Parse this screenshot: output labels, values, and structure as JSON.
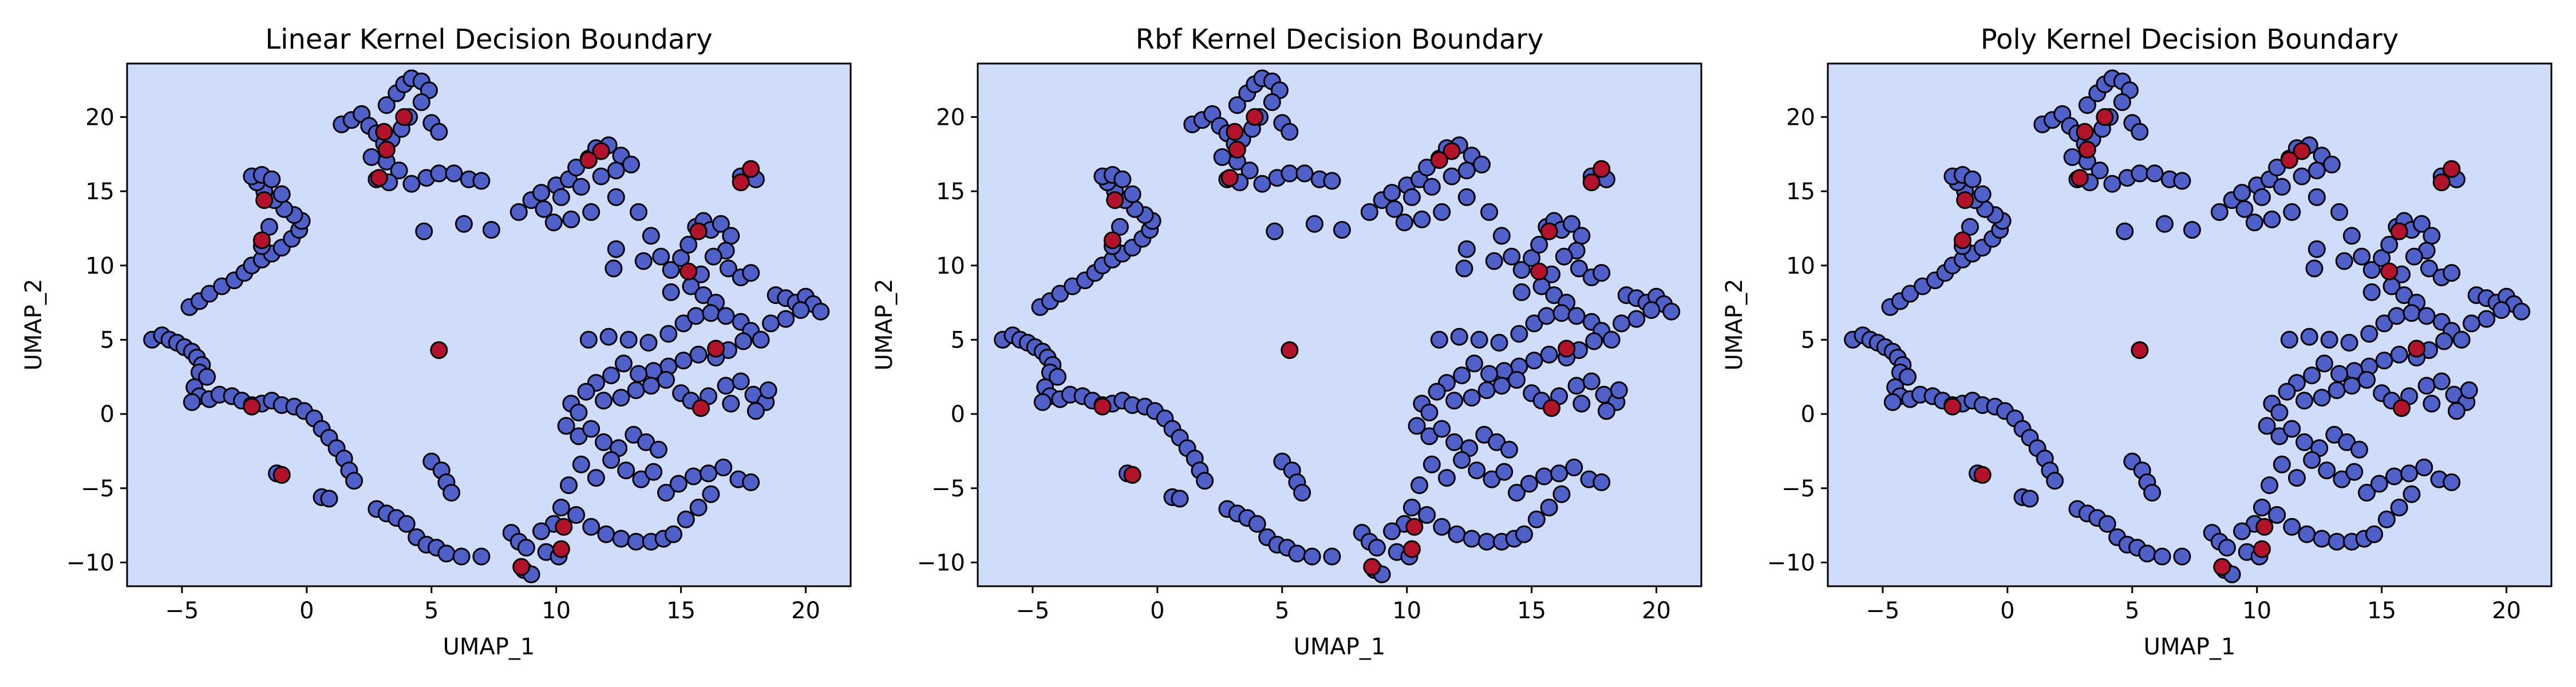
{
  "figure": {
    "background": "#ffffff",
    "region_color": "#cfdcfa",
    "class_colors": {
      "majority": "#4f60c9",
      "minority": "#b2122a"
    },
    "marker_edge": "#000000"
  },
  "chart_data": [
    {
      "type": "scatter",
      "title": "Linear Kernel Decision Boundary",
      "xlabel": "UMAP_1",
      "ylabel": "UMAP_2",
      "xlim": [
        -7.2,
        21.8
      ],
      "ylim": [
        -11.6,
        23.6
      ],
      "xticks": [
        -5,
        0,
        5,
        10,
        15,
        20
      ],
      "yticks": [
        -10,
        -5,
        0,
        5,
        10,
        15,
        20
      ],
      "xtick_labels": [
        "−5",
        "0",
        "5",
        "10",
        "15",
        "20"
      ],
      "ytick_labels": [
        "−10",
        "−5",
        "0",
        "5",
        "10",
        "15",
        "20"
      ],
      "grid": false,
      "legend": "none"
    },
    {
      "type": "scatter",
      "title": "Rbf Kernel Decision Boundary",
      "xlabel": "UMAP_1",
      "ylabel": "UMAP_2",
      "xlim": [
        -7.2,
        21.8
      ],
      "ylim": [
        -11.6,
        23.6
      ],
      "xticks": [
        -5,
        0,
        5,
        10,
        15,
        20
      ],
      "yticks": [
        -10,
        -5,
        0,
        5,
        10,
        15,
        20
      ],
      "xtick_labels": [
        "−5",
        "0",
        "5",
        "10",
        "15",
        "20"
      ],
      "ytick_labels": [
        "−10",
        "−5",
        "0",
        "5",
        "10",
        "15",
        "20"
      ],
      "grid": false,
      "legend": "none"
    },
    {
      "type": "scatter",
      "title": "Poly Kernel Decision Boundary",
      "xlabel": "UMAP_1",
      "ylabel": "UMAP_2",
      "xlim": [
        -7.2,
        21.8
      ],
      "ylim": [
        -11.6,
        23.6
      ],
      "xticks": [
        -5,
        0,
        5,
        10,
        15,
        20
      ],
      "yticks": [
        -10,
        -5,
        0,
        5,
        10,
        15,
        20
      ],
      "xtick_labels": [
        "−5",
        "0",
        "5",
        "10",
        "15",
        "20"
      ],
      "ytick_labels": [
        "−10",
        "−5",
        "0",
        "5",
        "10",
        "15",
        "20"
      ],
      "grid": false,
      "legend": "none"
    }
  ],
  "points": {
    "majority": [
      [
        -6.2,
        5.0
      ],
      [
        -5.8,
        5.3
      ],
      [
        -5.5,
        5.0
      ],
      [
        -5.2,
        4.8
      ],
      [
        -4.9,
        4.5
      ],
      [
        -4.6,
        4.2
      ],
      [
        -4.4,
        3.8
      ],
      [
        -4.2,
        3.3
      ],
      [
        -4.3,
        2.8
      ],
      [
        -4.0,
        2.5
      ],
      [
        -4.5,
        1.8
      ],
      [
        -4.3,
        1.2
      ],
      [
        -4.6,
        0.8
      ],
      [
        -3.9,
        1.0
      ],
      [
        -3.5,
        1.3
      ],
      [
        -3.0,
        1.2
      ],
      [
        -2.6,
        0.9
      ],
      [
        -2.2,
        0.6
      ],
      [
        -1.8,
        0.7
      ],
      [
        -1.4,
        0.9
      ],
      [
        -1.0,
        0.6
      ],
      [
        -0.5,
        0.5
      ],
      [
        -0.1,
        0.2
      ],
      [
        0.3,
        -0.3
      ],
      [
        0.6,
        -1.0
      ],
      [
        0.9,
        -1.6
      ],
      [
        1.2,
        -2.3
      ],
      [
        1.5,
        -3.0
      ],
      [
        1.7,
        -3.8
      ],
      [
        1.9,
        -4.5
      ],
      [
        0.6,
        -5.6
      ],
      [
        0.9,
        -5.7
      ],
      [
        -1.2,
        -4.0
      ],
      [
        2.8,
        -6.4
      ],
      [
        3.2,
        -6.7
      ],
      [
        3.6,
        -7.0
      ],
      [
        4.0,
        -7.4
      ],
      [
        4.4,
        -8.3
      ],
      [
        4.8,
        -8.8
      ],
      [
        5.2,
        -9.0
      ],
      [
        5.6,
        -9.4
      ],
      [
        6.2,
        -9.6
      ],
      [
        7.0,
        -9.6
      ],
      [
        8.2,
        -8.0
      ],
      [
        8.5,
        -8.6
      ],
      [
        8.8,
        -9.0
      ],
      [
        8.7,
        -10.5
      ],
      [
        9.0,
        -10.8
      ],
      [
        5.0,
        -3.2
      ],
      [
        5.4,
        -3.8
      ],
      [
        5.6,
        -4.6
      ],
      [
        5.8,
        -5.3
      ],
      [
        -4.7,
        7.2
      ],
      [
        -4.3,
        7.6
      ],
      [
        -3.9,
        8.1
      ],
      [
        -3.4,
        8.6
      ],
      [
        -2.9,
        9.0
      ],
      [
        -2.5,
        9.5
      ],
      [
        -2.2,
        10.0
      ],
      [
        -1.8,
        10.4
      ],
      [
        -1.4,
        10.8
      ],
      [
        -1.0,
        11.2
      ],
      [
        -0.6,
        11.8
      ],
      [
        -0.3,
        12.4
      ],
      [
        -0.2,
        13.0
      ],
      [
        -0.5,
        13.4
      ],
      [
        -0.9,
        13.8
      ],
      [
        -1.3,
        14.4
      ],
      [
        -1.7,
        15.0
      ],
      [
        -2.0,
        15.6
      ],
      [
        -2.2,
        16.0
      ],
      [
        -1.8,
        16.1
      ],
      [
        -1.4,
        15.8
      ],
      [
        -1.0,
        14.8
      ],
      [
        -1.5,
        12.6
      ],
      [
        -1.8,
        11.3
      ],
      [
        1.4,
        19.5
      ],
      [
        1.8,
        19.8
      ],
      [
        2.2,
        20.2
      ],
      [
        2.5,
        19.4
      ],
      [
        2.8,
        18.9
      ],
      [
        3.1,
        18.2
      ],
      [
        3.4,
        18.5
      ],
      [
        3.8,
        19.2
      ],
      [
        4.1,
        20.0
      ],
      [
        3.2,
        20.8
      ],
      [
        3.6,
        21.6
      ],
      [
        3.9,
        22.2
      ],
      [
        4.2,
        22.6
      ],
      [
        4.6,
        22.4
      ],
      [
        4.9,
        21.8
      ],
      [
        4.6,
        21.0
      ],
      [
        5.0,
        19.6
      ],
      [
        5.3,
        19.0
      ],
      [
        2.6,
        17.3
      ],
      [
        3.2,
        17.0
      ],
      [
        3.7,
        16.4
      ],
      [
        2.8,
        15.8
      ],
      [
        3.3,
        15.6
      ],
      [
        4.2,
        15.5
      ],
      [
        4.8,
        15.9
      ],
      [
        5.3,
        16.2
      ],
      [
        5.9,
        16.2
      ],
      [
        6.5,
        15.8
      ],
      [
        7.0,
        15.7
      ],
      [
        4.7,
        12.3
      ],
      [
        6.3,
        12.8
      ],
      [
        7.4,
        12.4
      ],
      [
        8.5,
        13.6
      ],
      [
        9.0,
        14.4
      ],
      [
        9.4,
        14.9
      ],
      [
        10.0,
        15.4
      ],
      [
        10.5,
        15.8
      ],
      [
        10.8,
        16.6
      ],
      [
        11.3,
        17.2
      ],
      [
        11.6,
        17.9
      ],
      [
        12.1,
        18.1
      ],
      [
        12.6,
        17.4
      ],
      [
        13.0,
        16.8
      ],
      [
        12.4,
        16.4
      ],
      [
        11.8,
        16.0
      ],
      [
        11.0,
        15.3
      ],
      [
        10.2,
        14.6
      ],
      [
        9.5,
        13.8
      ],
      [
        9.9,
        12.9
      ],
      [
        10.6,
        13.1
      ],
      [
        11.4,
        13.6
      ],
      [
        12.4,
        14.6
      ],
      [
        13.3,
        13.6
      ],
      [
        12.4,
        11.1
      ],
      [
        12.3,
        9.8
      ],
      [
        13.8,
        12.0
      ],
      [
        13.5,
        10.3
      ],
      [
        14.2,
        10.6
      ],
      [
        14.6,
        9.7
      ],
      [
        15.0,
        10.5
      ],
      [
        15.3,
        11.4
      ],
      [
        15.6,
        12.6
      ],
      [
        15.9,
        13.0
      ],
      [
        16.2,
        12.4
      ],
      [
        16.6,
        12.8
      ],
      [
        17.0,
        12.0
      ],
      [
        16.8,
        11.0
      ],
      [
        16.3,
        10.6
      ],
      [
        15.8,
        9.4
      ],
      [
        16.9,
        9.8
      ],
      [
        17.4,
        9.2
      ],
      [
        17.8,
        9.5
      ],
      [
        15.4,
        8.6
      ],
      [
        14.6,
        8.2
      ],
      [
        15.9,
        8.0
      ],
      [
        16.4,
        7.5
      ],
      [
        17.4,
        16.0
      ],
      [
        17.8,
        16.4
      ],
      [
        18.0,
        15.8
      ],
      [
        18.8,
        8.0
      ],
      [
        19.2,
        7.8
      ],
      [
        19.6,
        7.5
      ],
      [
        20.0,
        7.9
      ],
      [
        20.3,
        7.4
      ],
      [
        20.6,
        6.9
      ],
      [
        19.8,
        7.0
      ],
      [
        19.2,
        6.4
      ],
      [
        18.6,
        6.1
      ],
      [
        11.3,
        5.0
      ],
      [
        12.1,
        5.2
      ],
      [
        12.9,
        5.0
      ],
      [
        13.7,
        4.8
      ],
      [
        14.5,
        5.4
      ],
      [
        15.1,
        6.1
      ],
      [
        15.6,
        6.6
      ],
      [
        16.2,
        6.8
      ],
      [
        16.8,
        6.6
      ],
      [
        17.4,
        6.2
      ],
      [
        17.8,
        5.6
      ],
      [
        18.2,
        5.0
      ],
      [
        17.5,
        4.9
      ],
      [
        16.9,
        4.3
      ],
      [
        16.4,
        3.8
      ],
      [
        15.7,
        4.0
      ],
      [
        15.1,
        3.6
      ],
      [
        14.5,
        3.2
      ],
      [
        13.9,
        2.9
      ],
      [
        13.3,
        2.7
      ],
      [
        12.7,
        3.4
      ],
      [
        12.2,
        2.6
      ],
      [
        11.6,
        2.1
      ],
      [
        11.2,
        1.5
      ],
      [
        11.9,
        0.9
      ],
      [
        12.6,
        1.1
      ],
      [
        13.2,
        1.6
      ],
      [
        13.8,
        1.9
      ],
      [
        14.4,
        2.3
      ],
      [
        15.0,
        1.4
      ],
      [
        15.4,
        0.9
      ],
      [
        16.1,
        1.2
      ],
      [
        16.8,
        1.9
      ],
      [
        17.4,
        2.2
      ],
      [
        17.0,
        0.7
      ],
      [
        17.9,
        1.3
      ],
      [
        18.4,
        0.8
      ],
      [
        18.0,
        0.2
      ],
      [
        18.5,
        1.6
      ],
      [
        10.6,
        0.7
      ],
      [
        10.9,
        0.1
      ],
      [
        10.4,
        -0.8
      ],
      [
        10.9,
        -1.5
      ],
      [
        11.4,
        -1.0
      ],
      [
        11.9,
        -1.9
      ],
      [
        12.5,
        -2.3
      ],
      [
        13.1,
        -1.4
      ],
      [
        13.6,
        -1.9
      ],
      [
        14.1,
        -2.4
      ],
      [
        12.2,
        -3.1
      ],
      [
        12.8,
        -3.8
      ],
      [
        13.4,
        -4.4
      ],
      [
        13.9,
        -3.9
      ],
      [
        14.4,
        -5.3
      ],
      [
        14.9,
        -4.7
      ],
      [
        15.5,
        -4.2
      ],
      [
        16.1,
        -4.0
      ],
      [
        16.7,
        -3.6
      ],
      [
        17.3,
        -4.4
      ],
      [
        17.8,
        -4.6
      ],
      [
        11.0,
        -3.4
      ],
      [
        11.6,
        -4.3
      ],
      [
        10.5,
        -4.8
      ],
      [
        10.2,
        -6.3
      ],
      [
        10.8,
        -6.8
      ],
      [
        11.4,
        -7.6
      ],
      [
        12.0,
        -8.1
      ],
      [
        12.6,
        -8.4
      ],
      [
        13.2,
        -8.6
      ],
      [
        13.8,
        -8.6
      ],
      [
        14.3,
        -8.4
      ],
      [
        14.7,
        -8.1
      ],
      [
        15.2,
        -7.1
      ],
      [
        15.7,
        -6.3
      ],
      [
        16.2,
        -5.4
      ],
      [
        9.9,
        -7.4
      ],
      [
        9.4,
        -7.9
      ],
      [
        9.6,
        -9.3
      ],
      [
        10.1,
        -9.6
      ]
    ],
    "minority": [
      [
        -1.7,
        14.4
      ],
      [
        -1.8,
        11.7
      ],
      [
        3.1,
        19.0
      ],
      [
        3.2,
        17.8
      ],
      [
        3.9,
        20.0
      ],
      [
        2.9,
        15.9
      ],
      [
        11.8,
        17.7
      ],
      [
        11.3,
        17.1
      ],
      [
        15.7,
        12.3
      ],
      [
        15.3,
        9.6
      ],
      [
        17.4,
        15.6
      ],
      [
        17.8,
        16.5
      ],
      [
        5.3,
        4.3
      ],
      [
        16.4,
        4.4
      ],
      [
        15.8,
        0.4
      ],
      [
        -1.0,
        -4.1
      ],
      [
        -2.2,
        0.5
      ],
      [
        10.3,
        -7.6
      ],
      [
        10.2,
        -9.1
      ],
      [
        8.6,
        -10.3
      ]
    ]
  }
}
